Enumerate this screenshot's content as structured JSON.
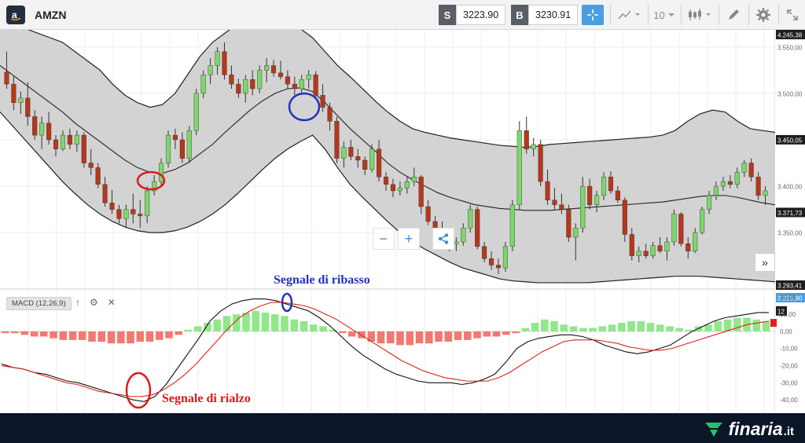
{
  "header": {
    "symbol": "AMZN",
    "sell_tag": "S",
    "sell_price": "3223.90",
    "buy_tag": "B",
    "buy_price": "3230.91",
    "interval": "10"
  },
  "price_axis": {
    "labels": [
      "4.245,38",
      "3.550,00",
      "3.500,00",
      "3.450,05",
      "3.400,00",
      "3.371,73",
      "3.350,00",
      "3.293,41",
      "3.223,90"
    ],
    "highlight": [
      "4.245,38",
      "3.450,05",
      "3.371,73",
      "3.293,41"
    ],
    "current": "3.223,90"
  },
  "macd": {
    "label": "MACD (12,26,9)",
    "axis_labels": [
      "20,00",
      "10,00",
      "0,00",
      "-10,00",
      "-20,00",
      "-30,00",
      "-40,00"
    ],
    "current_badge": "12"
  },
  "annotations": {
    "sell_signal": "Segnale di ribasso",
    "buy_signal": "Segnale di rialzo"
  },
  "footer": {
    "brand": "finaria",
    "tld": ".it"
  },
  "colors": {
    "up_candle": "#7ed66b",
    "down_candle": "#b5381c",
    "band_fill": "#d3d3d3",
    "macd_pos": "#90e88a",
    "macd_neg": "#f07a70",
    "signal_line": "#e02020",
    "ann_blue": "#2233bb",
    "ann_red": "#dd1a1a",
    "footer_bg": "#0b1628",
    "brand_green": "#25c26e"
  },
  "chart_data": {
    "type": "candlestick",
    "note_ranges": {
      "price_ylim": [
        3293.41,
        3560
      ],
      "macd_ylim": [
        -45,
        22
      ]
    },
    "candles": [
      [
        3523,
        3545,
        3505,
        3510
      ],
      [
        3510,
        3518,
        3482,
        3490
      ],
      [
        3490,
        3502,
        3478,
        3495
      ],
      [
        3495,
        3512,
        3465,
        3475
      ],
      [
        3475,
        3482,
        3450,
        3455
      ],
      [
        3455,
        3475,
        3440,
        3468
      ],
      [
        3468,
        3480,
        3445,
        3450
      ],
      [
        3450,
        3455,
        3432,
        3440
      ],
      [
        3440,
        3460,
        3438,
        3455
      ],
      [
        3455,
        3462,
        3440,
        3445
      ],
      [
        3445,
        3460,
        3437,
        3455
      ],
      [
        3455,
        3458,
        3420,
        3425
      ],
      [
        3425,
        3440,
        3412,
        3420
      ],
      [
        3420,
        3425,
        3398,
        3402
      ],
      [
        3402,
        3410,
        3378,
        3382
      ],
      [
        3382,
        3396,
        3370,
        3375
      ],
      [
        3375,
        3380,
        3360,
        3365
      ],
      [
        3365,
        3380,
        3355,
        3375
      ],
      [
        3375,
        3392,
        3360,
        3370
      ],
      [
        3370,
        3385,
        3355,
        3368
      ],
      [
        3368,
        3400,
        3360,
        3395
      ],
      [
        3395,
        3412,
        3390,
        3405
      ],
      [
        3405,
        3430,
        3400,
        3425
      ],
      [
        3425,
        3460,
        3420,
        3455
      ],
      [
        3455,
        3462,
        3440,
        3450
      ],
      [
        3450,
        3458,
        3425,
        3430
      ],
      [
        3430,
        3465,
        3425,
        3460
      ],
      [
        3460,
        3505,
        3455,
        3500
      ],
      [
        3500,
        3525,
        3495,
        3520
      ],
      [
        3520,
        3538,
        3510,
        3530
      ],
      [
        3530,
        3550,
        3520,
        3545
      ],
      [
        3545,
        3555,
        3515,
        3520
      ],
      [
        3520,
        3530,
        3505,
        3510
      ],
      [
        3510,
        3516,
        3495,
        3500
      ],
      [
        3500,
        3520,
        3490,
        3515
      ],
      [
        3515,
        3525,
        3498,
        3505
      ],
      [
        3505,
        3530,
        3500,
        3525
      ],
      [
        3525,
        3538,
        3512,
        3530
      ],
      [
        3530,
        3536,
        3518,
        3522
      ],
      [
        3522,
        3535,
        3515,
        3518
      ],
      [
        3518,
        3525,
        3505,
        3510
      ],
      [
        3510,
        3518,
        3498,
        3505
      ],
      [
        3505,
        3520,
        3500,
        3515
      ],
      [
        3515,
        3525,
        3505,
        3520
      ],
      [
        3520,
        3524,
        3496,
        3498
      ],
      [
        3498,
        3510,
        3480,
        3485
      ],
      [
        3485,
        3490,
        3460,
        3470
      ],
      [
        3470,
        3475,
        3425,
        3430
      ],
      [
        3430,
        3448,
        3420,
        3442
      ],
      [
        3442,
        3450,
        3428,
        3432
      ],
      [
        3432,
        3440,
        3420,
        3428
      ],
      [
        3428,
        3432,
        3412,
        3418
      ],
      [
        3418,
        3445,
        3415,
        3440
      ],
      [
        3440,
        3450,
        3405,
        3410
      ],
      [
        3410,
        3415,
        3395,
        3402
      ],
      [
        3402,
        3408,
        3388,
        3395
      ],
      [
        3395,
        3405,
        3390,
        3398
      ],
      [
        3398,
        3410,
        3392,
        3405
      ],
      [
        3405,
        3420,
        3400,
        3410
      ],
      [
        3410,
        3412,
        3370,
        3378
      ],
      [
        3378,
        3385,
        3358,
        3362
      ],
      [
        3362,
        3368,
        3348,
        3355
      ],
      [
        3355,
        3362,
        3340,
        3345
      ],
      [
        3345,
        3352,
        3330,
        3338
      ],
      [
        3338,
        3345,
        3330,
        3340
      ],
      [
        3340,
        3360,
        3336,
        3355
      ],
      [
        3355,
        3380,
        3350,
        3375
      ],
      [
        3375,
        3378,
        3332,
        3335
      ],
      [
        3335,
        3340,
        3318,
        3322
      ],
      [
        3322,
        3330,
        3310,
        3315
      ],
      [
        3315,
        3322,
        3305,
        3312
      ],
      [
        3312,
        3340,
        3308,
        3335
      ],
      [
        3335,
        3385,
        3330,
        3380
      ],
      [
        3380,
        3470,
        3375,
        3460
      ],
      [
        3460,
        3475,
        3435,
        3440
      ],
      [
        3440,
        3452,
        3432,
        3445
      ],
      [
        3445,
        3450,
        3400,
        3405
      ],
      [
        3405,
        3418,
        3380,
        3385
      ],
      [
        3385,
        3398,
        3375,
        3380
      ],
      [
        3380,
        3392,
        3370,
        3375
      ],
      [
        3375,
        3380,
        3340,
        3345
      ],
      [
        3345,
        3360,
        3320,
        3355
      ],
      [
        3355,
        3410,
        3350,
        3400
      ],
      [
        3400,
        3408,
        3375,
        3380
      ],
      [
        3380,
        3395,
        3372,
        3390
      ],
      [
        3390,
        3415,
        3385,
        3410
      ],
      [
        3410,
        3416,
        3392,
        3395
      ],
      [
        3395,
        3400,
        3382,
        3385
      ],
      [
        3385,
        3388,
        3340,
        3348
      ],
      [
        3348,
        3355,
        3320,
        3325
      ],
      [
        3325,
        3335,
        3318,
        3330
      ],
      [
        3330,
        3338,
        3322,
        3325
      ],
      [
        3325,
        3340,
        3322,
        3336
      ],
      [
        3336,
        3345,
        3328,
        3330
      ],
      [
        3330,
        3345,
        3320,
        3340
      ],
      [
        3340,
        3375,
        3336,
        3370
      ],
      [
        3370,
        3372,
        3335,
        3338
      ],
      [
        3338,
        3345,
        3322,
        3330
      ],
      [
        3330,
        3355,
        3328,
        3350
      ],
      [
        3350,
        3378,
        3348,
        3375
      ],
      [
        3375,
        3395,
        3370,
        3390
      ],
      [
        3390,
        3405,
        3385,
        3400
      ],
      [
        3400,
        3410,
        3395,
        3405
      ],
      [
        3405,
        3412,
        3398,
        3402
      ],
      [
        3402,
        3420,
        3398,
        3415
      ],
      [
        3415,
        3428,
        3410,
        3425
      ],
      [
        3425,
        3430,
        3405,
        3410
      ],
      [
        3410,
        3415,
        3385,
        3390
      ],
      [
        3390,
        3400,
        3380,
        3395
      ]
    ],
    "upper_band": [
      3580,
      3575,
      3570,
      3565,
      3560,
      3555,
      3545,
      3535,
      3525,
      3510,
      3498,
      3490,
      3485,
      3488,
      3500,
      3520,
      3540,
      3555,
      3565,
      3575,
      3580,
      3582,
      3580,
      3578,
      3570,
      3560,
      3545,
      3530,
      3518,
      3505,
      3492,
      3480,
      3470,
      3462,
      3458,
      3455,
      3452,
      3450,
      3448,
      3446,
      3444,
      3443,
      3442,
      3443,
      3445,
      3446,
      3447,
      3448,
      3449,
      3450,
      3451,
      3452,
      3453,
      3455,
      3460,
      3470,
      3478,
      3482,
      3480,
      3470,
      3462,
      3460,
      3458
    ],
    "middle_band": [
      3530,
      3520,
      3510,
      3500,
      3490,
      3480,
      3468,
      3458,
      3448,
      3438,
      3428,
      3420,
      3415,
      3414,
      3418,
      3425,
      3435,
      3445,
      3458,
      3470,
      3482,
      3492,
      3500,
      3505,
      3506,
      3502,
      3490,
      3476,
      3462,
      3450,
      3438,
      3425,
      3415,
      3407,
      3400,
      3393,
      3388,
      3384,
      3380,
      3378,
      3376,
      3375,
      3374,
      3374,
      3374,
      3375,
      3376,
      3377,
      3378,
      3379,
      3380,
      3381,
      3382,
      3383,
      3385,
      3387,
      3389,
      3390,
      3390,
      3388,
      3385,
      3382,
      3380
    ],
    "lower_band": [
      3480,
      3465,
      3450,
      3435,
      3420,
      3405,
      3392,
      3380,
      3370,
      3362,
      3356,
      3352,
      3350,
      3350,
      3352,
      3356,
      3362,
      3370,
      3380,
      3392,
      3405,
      3418,
      3430,
      3440,
      3448,
      3455,
      3440,
      3420,
      3402,
      3388,
      3375,
      3362,
      3350,
      3340,
      3332,
      3325,
      3318,
      3312,
      3308,
      3304,
      3300,
      3298,
      3297,
      3296,
      3296,
      3296,
      3296,
      3296,
      3297,
      3298,
      3299,
      3300,
      3301,
      3302,
      3303,
      3303,
      3303,
      3302,
      3301,
      3300,
      3299,
      3298,
      3297
    ],
    "macd_histogram": [
      -1,
      -1,
      -2,
      -3,
      -3,
      -4,
      -5,
      -5,
      -5,
      -6,
      -6,
      -7,
      -7,
      -7,
      -6,
      -6,
      -5,
      -4,
      -2,
      1,
      3,
      5,
      7,
      9,
      10,
      11,
      12,
      11,
      10,
      9,
      7,
      6,
      4,
      3,
      1,
      -1,
      -3,
      -4,
      -6,
      -7,
      -7,
      -8,
      -8,
      -7,
      -7,
      -6,
      -6,
      -5,
      -5,
      -4,
      -3,
      -3,
      -2,
      -1,
      2,
      5,
      7,
      6,
      4,
      3,
      2,
      2,
      3,
      4,
      5,
      6,
      6,
      5,
      4,
      3,
      2,
      1,
      3,
      4,
      6,
      7,
      8,
      8,
      7,
      6
    ],
    "macd_line": [
      -19,
      -21,
      -22,
      -24,
      -25,
      -27,
      -29,
      -30,
      -32,
      -34,
      -36,
      -38,
      -40,
      -41,
      -38,
      -31,
      -22,
      -13,
      -4,
      6,
      12,
      16,
      18,
      19,
      19,
      18,
      16,
      14,
      12,
      8,
      3,
      -3,
      -9,
      -14,
      -18,
      -22,
      -25,
      -27,
      -29,
      -30,
      -30,
      -30,
      -31,
      -30,
      -28,
      -25,
      -18,
      -10,
      -6,
      -4,
      -3,
      -2,
      -2,
      -3,
      -5,
      -8,
      -10,
      -12,
      -13,
      -12,
      -10,
      -8,
      -4,
      0,
      3,
      6,
      8,
      9,
      10,
      11,
      11
    ],
    "signal_line": [
      -20,
      -21,
      -22,
      -24,
      -26,
      -28,
      -30,
      -31,
      -33,
      -35,
      -36,
      -37,
      -38,
      -38,
      -37,
      -34,
      -30,
      -25,
      -19,
      -12,
      -5,
      2,
      8,
      12,
      15,
      17,
      17,
      16,
      15,
      13,
      10,
      7,
      3,
      -1,
      -5,
      -9,
      -13,
      -17,
      -20,
      -23,
      -25,
      -27,
      -28,
      -29,
      -29,
      -29,
      -27,
      -24,
      -20,
      -16,
      -12,
      -9,
      -6,
      -5,
      -5,
      -5,
      -6,
      -7,
      -9,
      -10,
      -11,
      -11,
      -10,
      -8,
      -6,
      -4,
      -2,
      0,
      2,
      4,
      5,
      6
    ]
  }
}
